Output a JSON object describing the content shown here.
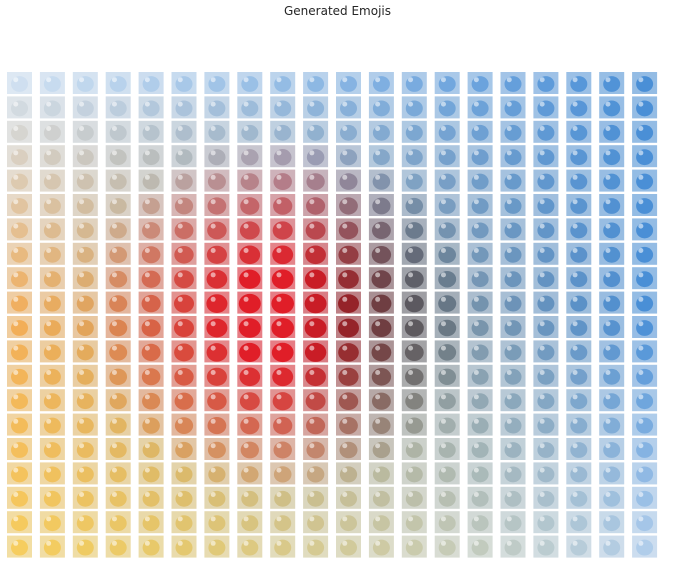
{
  "figure": {
    "title": "Generated Emojis"
  },
  "grid": {
    "rows": 20,
    "cols": 20,
    "palette": {
      "pale_blue": "#c9dcef",
      "blue": "#4a8fd6",
      "navy_gray": "#3b4450",
      "black": "#1a1416",
      "dark_red": "#7a1a20",
      "red": "#e01e28",
      "orange": "#f2a03c",
      "yellow": "#f7c744",
      "pale": "#eef2f6"
    }
  }
}
